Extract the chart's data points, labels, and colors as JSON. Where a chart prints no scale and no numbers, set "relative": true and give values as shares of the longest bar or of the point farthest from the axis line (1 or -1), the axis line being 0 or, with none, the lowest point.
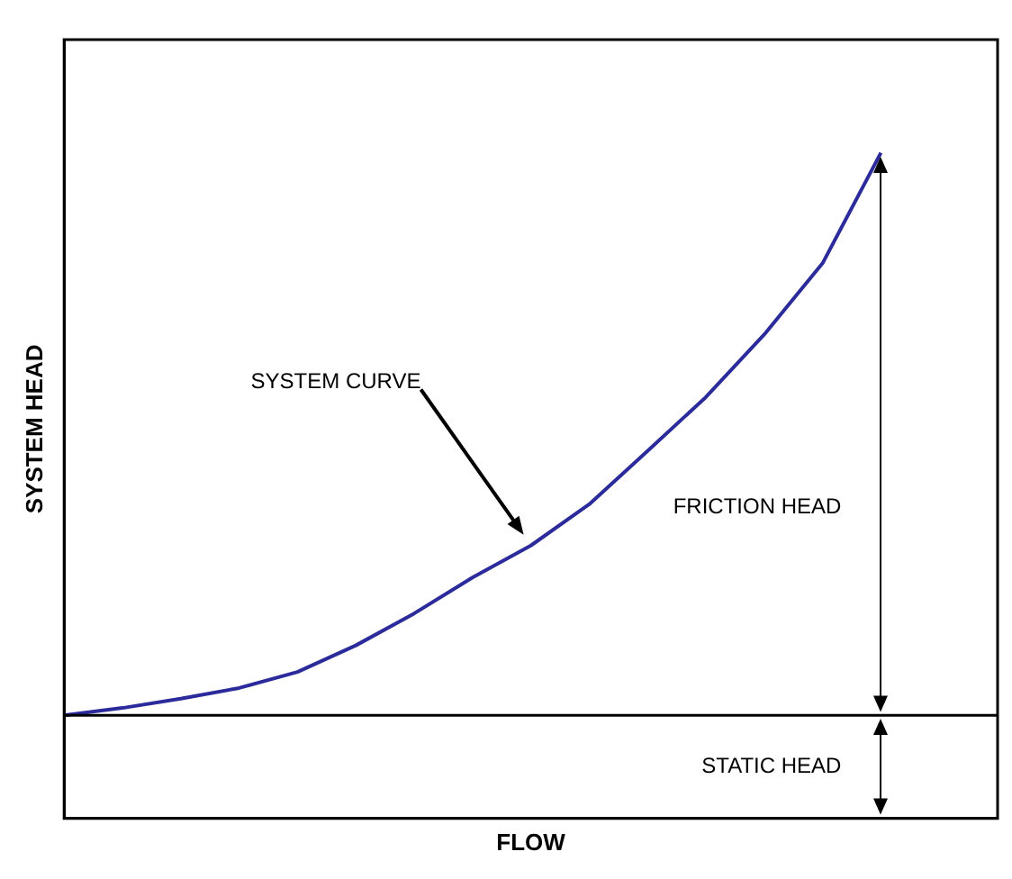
{
  "chart_data": {
    "type": "line",
    "relative": true,
    "xlabel": "FLOW",
    "ylabel": "SYSTEM HEAD",
    "categories": [
      null,
      null,
      null,
      null,
      null,
      null,
      null,
      null,
      null,
      null,
      null,
      null,
      null,
      null,
      null,
      null,
      null
    ],
    "series": [
      {
        "color": "#2b2b9b",
        "values": [
          0.155,
          0.166,
          0.18,
          0.196,
          0.22,
          0.26,
          0.308,
          0.362,
          0.41,
          0.472,
          0.552,
          0.633,
          0.727,
          0.834,
          1,
          null,
          null
        ]
      }
    ],
    "ref_lines": [
      {
        "axis": "y",
        "value": 0.155,
        "label": "STATIC HEAD",
        "color": "#000000"
      }
    ],
    "annotations": [
      "SYSTEM CURVE",
      "FRICTION HEAD"
    ],
    "marker": "none",
    "line_style": "solid",
    "grid": false,
    "legend": false
  }
}
